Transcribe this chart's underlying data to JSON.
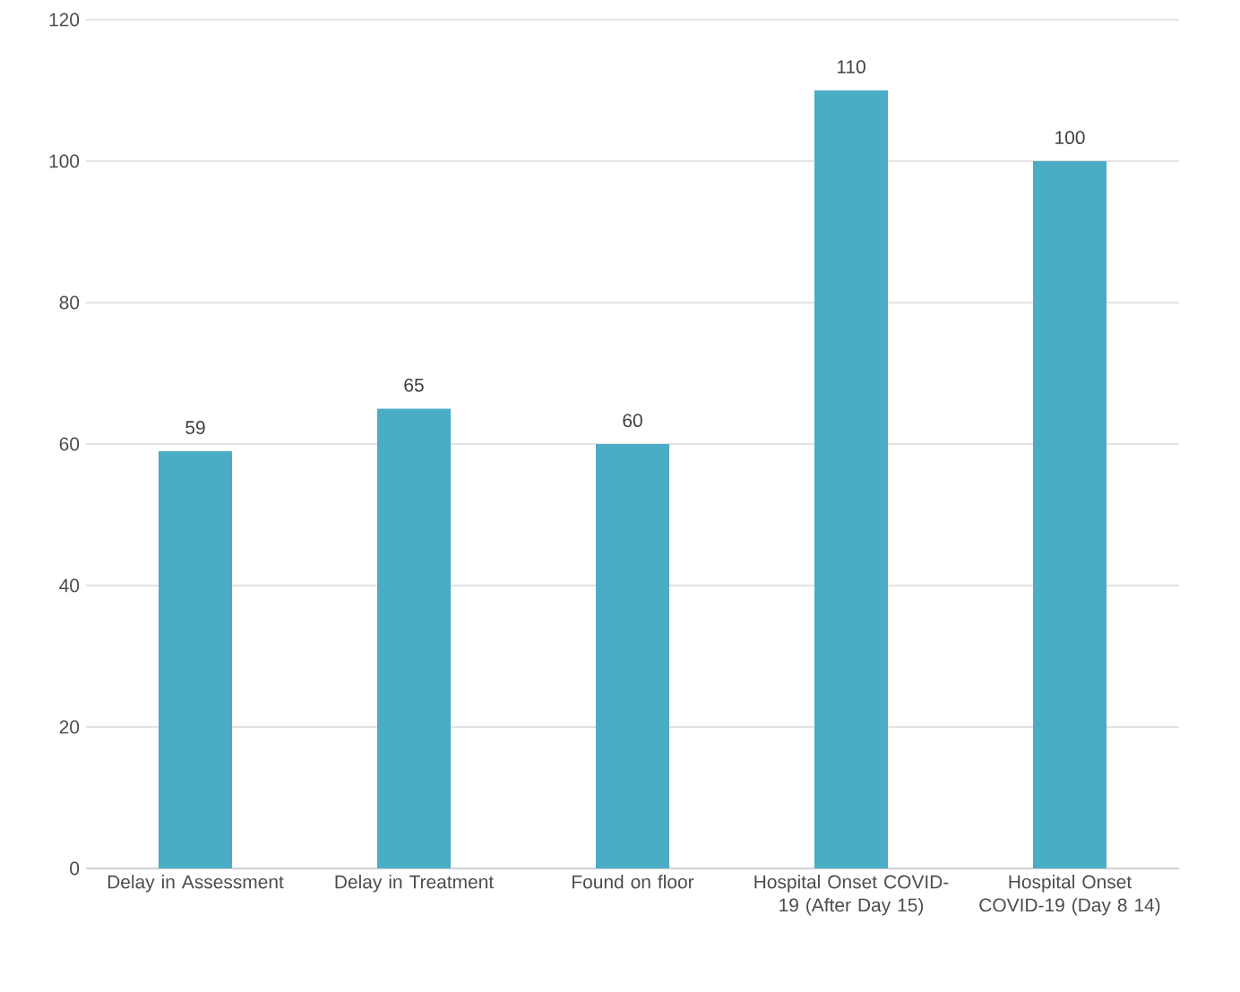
{
  "chart_data": {
    "type": "bar",
    "categories": [
      "Delay in Assessment",
      "Delay in Treatment",
      "Found on floor",
      "Hospital Onset COVID-19 (After Day 15)",
      "Hospital Onset COVID-19 (Day 8 14)"
    ],
    "values": [
      59,
      65,
      60,
      110,
      100
    ],
    "color": "#4bacc6",
    "ylim": [
      0,
      120
    ],
    "yticks": [
      0,
      20,
      40,
      60,
      80,
      100,
      120
    ],
    "grid": "y",
    "data_labels": true
  }
}
